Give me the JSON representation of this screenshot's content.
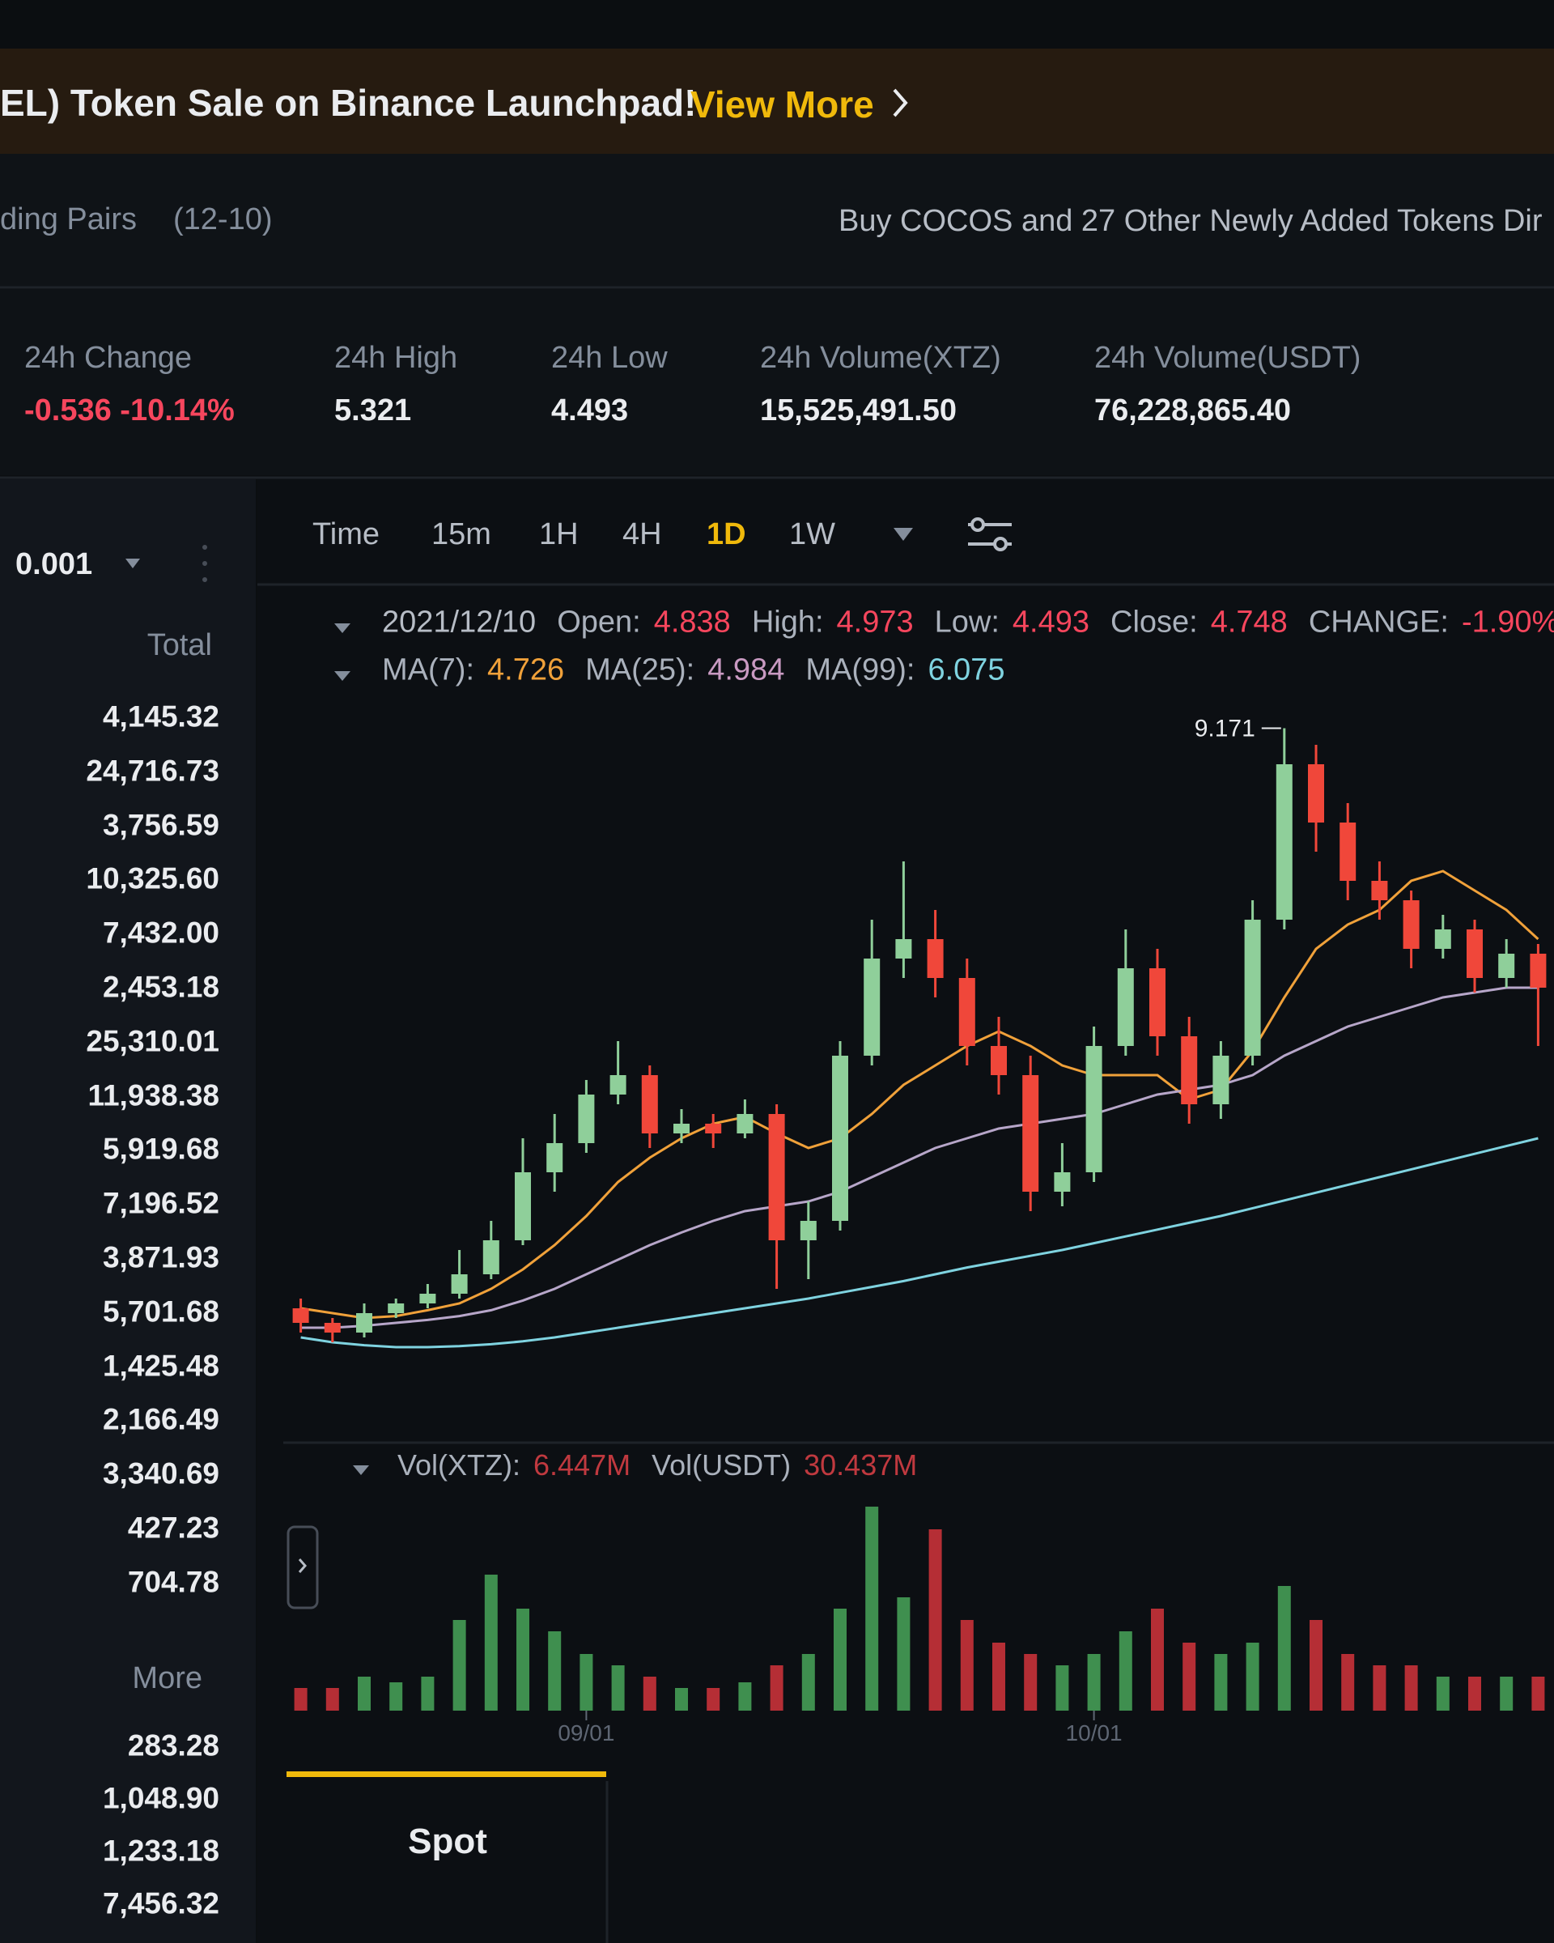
{
  "banner": {
    "text": "EL) Token Sale on Binance Launchpad!",
    "link": "View More"
  },
  "news": {
    "left": "ding Pairs",
    "date": "(12-10)",
    "right": "Buy COCOS and 27 Other Newly Added Tokens Dir"
  },
  "stats": [
    {
      "label": "24h Change",
      "value": "-0.536 -10.14%",
      "color": "#f6465d"
    },
    {
      "label": "24h High",
      "value": "5.321",
      "color": "#eaecef"
    },
    {
      "label": "24h Low",
      "value": "4.493",
      "color": "#eaecef"
    },
    {
      "label": "24h Volume(XTZ)",
      "value": "15,525,491.50",
      "color": "#eaecef"
    },
    {
      "label": "24h Volume(USDT)",
      "value": "76,228,865.40",
      "color": "#eaecef"
    }
  ],
  "orderbook": {
    "precision": "0.001",
    "header": "Total",
    "totals": [
      "4,145.32",
      "24,716.73",
      "3,756.59",
      "10,325.60",
      "7,432.00",
      "2,453.18",
      "25,310.01",
      "11,938.38",
      "5,919.68",
      "7,196.52",
      "3,871.93",
      "5,701.68",
      "1,425.48",
      "2,166.49",
      "3,340.69",
      "427.23",
      "704.78"
    ],
    "more": "More",
    "more_totals": [
      "283.28",
      "1,048.90",
      "1,233.18",
      "7,456.32"
    ]
  },
  "toolbar": {
    "items": [
      "Time",
      "15m",
      "1H",
      "4H",
      "1D",
      "1W"
    ],
    "active": "1D"
  },
  "ohlc_line": {
    "date": "2021/12/10",
    "items": [
      {
        "label": "Open:",
        "value": "4.838"
      },
      {
        "label": "High:",
        "value": "4.973"
      },
      {
        "label": "Low:",
        "value": "4.493"
      },
      {
        "label": "Close:",
        "value": "4.748"
      },
      {
        "label": "CHANGE:",
        "value": "-1.90%"
      }
    ]
  },
  "ma_line": [
    {
      "label": "MA(7):",
      "value": "4.726",
      "color": "#f0a13a"
    },
    {
      "label": "MA(25):",
      "value": "4.984",
      "color": "#c99ac2"
    },
    {
      "label": "MA(99):",
      "value": "6.075",
      "color": "#7fd3e0"
    }
  ],
  "vol_line": [
    {
      "label": "Vol(XTZ):",
      "value": "6.447M"
    },
    {
      "label": "Vol(USDT)",
      "value": "30.437M"
    }
  ],
  "tab": "Spot",
  "chart_data": {
    "type": "candlestick",
    "categories": [
      null,
      null,
      null,
      null,
      null,
      null,
      null,
      null,
      null,
      "09/01",
      null,
      null,
      null,
      null,
      null,
      null,
      null,
      null,
      null,
      null,
      null,
      null,
      null,
      null,
      null,
      "10/01",
      null,
      null,
      null,
      null,
      null,
      null,
      null,
      null,
      null,
      null,
      null,
      null,
      null,
      null
    ],
    "open": [
      3.2,
      3.05,
      2.95,
      3.15,
      3.25,
      3.35,
      3.55,
      3.9,
      4.6,
      4.9,
      5.4,
      5.6,
      5.0,
      5.1,
      5.0,
      5.2,
      3.9,
      4.1,
      5.8,
      6.8,
      7.0,
      6.6,
      5.9,
      5.6,
      4.4,
      4.6,
      5.9,
      6.7,
      6.0,
      5.3,
      5.8,
      7.2,
      8.8,
      8.2,
      7.6,
      7.4,
      6.9,
      7.1,
      6.6,
      6.85
    ],
    "high": [
      3.3,
      3.1,
      3.25,
      3.3,
      3.45,
      3.8,
      4.1,
      4.95,
      5.2,
      5.55,
      5.95,
      5.7,
      5.25,
      5.2,
      5.35,
      5.3,
      4.3,
      5.95,
      7.2,
      7.8,
      7.3,
      6.8,
      6.2,
      5.8,
      4.9,
      6.1,
      7.1,
      6.9,
      6.2,
      5.95,
      7.4,
      9.171,
      9.0,
      8.4,
      7.8,
      7.5,
      7.25,
      7.2,
      7.0,
      6.95
    ],
    "low": [
      2.95,
      2.85,
      2.9,
      3.1,
      3.2,
      3.3,
      3.5,
      3.85,
      4.4,
      4.8,
      5.3,
      4.85,
      4.9,
      4.85,
      4.95,
      3.4,
      3.5,
      4.0,
      5.7,
      6.6,
      6.4,
      5.7,
      5.4,
      4.2,
      4.25,
      4.5,
      5.8,
      5.8,
      5.1,
      5.15,
      5.7,
      7.1,
      7.9,
      7.4,
      7.2,
      6.7,
      6.8,
      6.45,
      6.5,
      5.9
    ],
    "close": [
      3.05,
      2.95,
      3.15,
      3.25,
      3.35,
      3.55,
      3.9,
      4.6,
      4.9,
      5.4,
      5.6,
      5.0,
      5.1,
      5.0,
      5.2,
      3.9,
      4.1,
      5.8,
      6.8,
      7.0,
      6.6,
      5.9,
      5.6,
      4.4,
      4.6,
      5.9,
      6.7,
      6.0,
      5.3,
      5.8,
      7.2,
      8.8,
      8.2,
      7.6,
      7.4,
      6.9,
      7.1,
      6.6,
      6.85,
      6.5
    ],
    "ylim": [
      2.5,
      9.5
    ],
    "up_color": "#8fcf9a",
    "down_color": "#f0473a",
    "series": [
      {
        "color": "#f0a13a",
        "values": [
          3.2,
          3.15,
          3.1,
          3.12,
          3.18,
          3.25,
          3.4,
          3.6,
          3.85,
          4.15,
          4.5,
          4.75,
          4.95,
          5.1,
          5.17,
          5.0,
          4.85,
          4.95,
          5.2,
          5.5,
          5.7,
          5.9,
          6.05,
          5.9,
          5.7,
          5.6,
          5.6,
          5.6,
          5.35,
          5.45,
          5.85,
          6.4,
          6.9,
          7.15,
          7.3,
          7.6,
          7.7,
          7.5,
          7.3,
          7.0
        ]
      },
      {
        "color": "#b7a6c9",
        "values": [
          3.0,
          3.0,
          3.02,
          3.05,
          3.08,
          3.12,
          3.18,
          3.28,
          3.4,
          3.55,
          3.7,
          3.85,
          3.98,
          4.1,
          4.2,
          4.25,
          4.3,
          4.4,
          4.55,
          4.7,
          4.85,
          4.95,
          5.05,
          5.1,
          5.15,
          5.2,
          5.3,
          5.4,
          5.45,
          5.5,
          5.6,
          5.8,
          5.95,
          6.1,
          6.2,
          6.3,
          6.4,
          6.45,
          6.5,
          6.5
        ]
      },
      {
        "color": "#7fd3e0",
        "values": [
          2.9,
          2.85,
          2.82,
          2.8,
          2.8,
          2.81,
          2.83,
          2.86,
          2.9,
          2.95,
          3.0,
          3.05,
          3.1,
          3.15,
          3.2,
          3.25,
          3.3,
          3.36,
          3.42,
          3.48,
          3.55,
          3.62,
          3.68,
          3.74,
          3.8,
          3.87,
          3.94,
          4.01,
          4.08,
          4.15,
          4.23,
          4.31,
          4.39,
          4.47,
          4.55,
          4.63,
          4.71,
          4.79,
          4.87,
          4.95
        ]
      }
    ],
    "volume": [
      2,
      2,
      3,
      2.5,
      3,
      8,
      12,
      9,
      7,
      5,
      4,
      3,
      2,
      2,
      2.5,
      4,
      5,
      9,
      18,
      10,
      16,
      8,
      6,
      5,
      4,
      5,
      7,
      9,
      6,
      5,
      6,
      11,
      8,
      5,
      4,
      4,
      3,
      3,
      3,
      3
    ],
    "vol_ylim": [
      0,
      20
    ],
    "vol_up_color": "#3f8f4f",
    "vol_down_color": "#b52e35"
  }
}
